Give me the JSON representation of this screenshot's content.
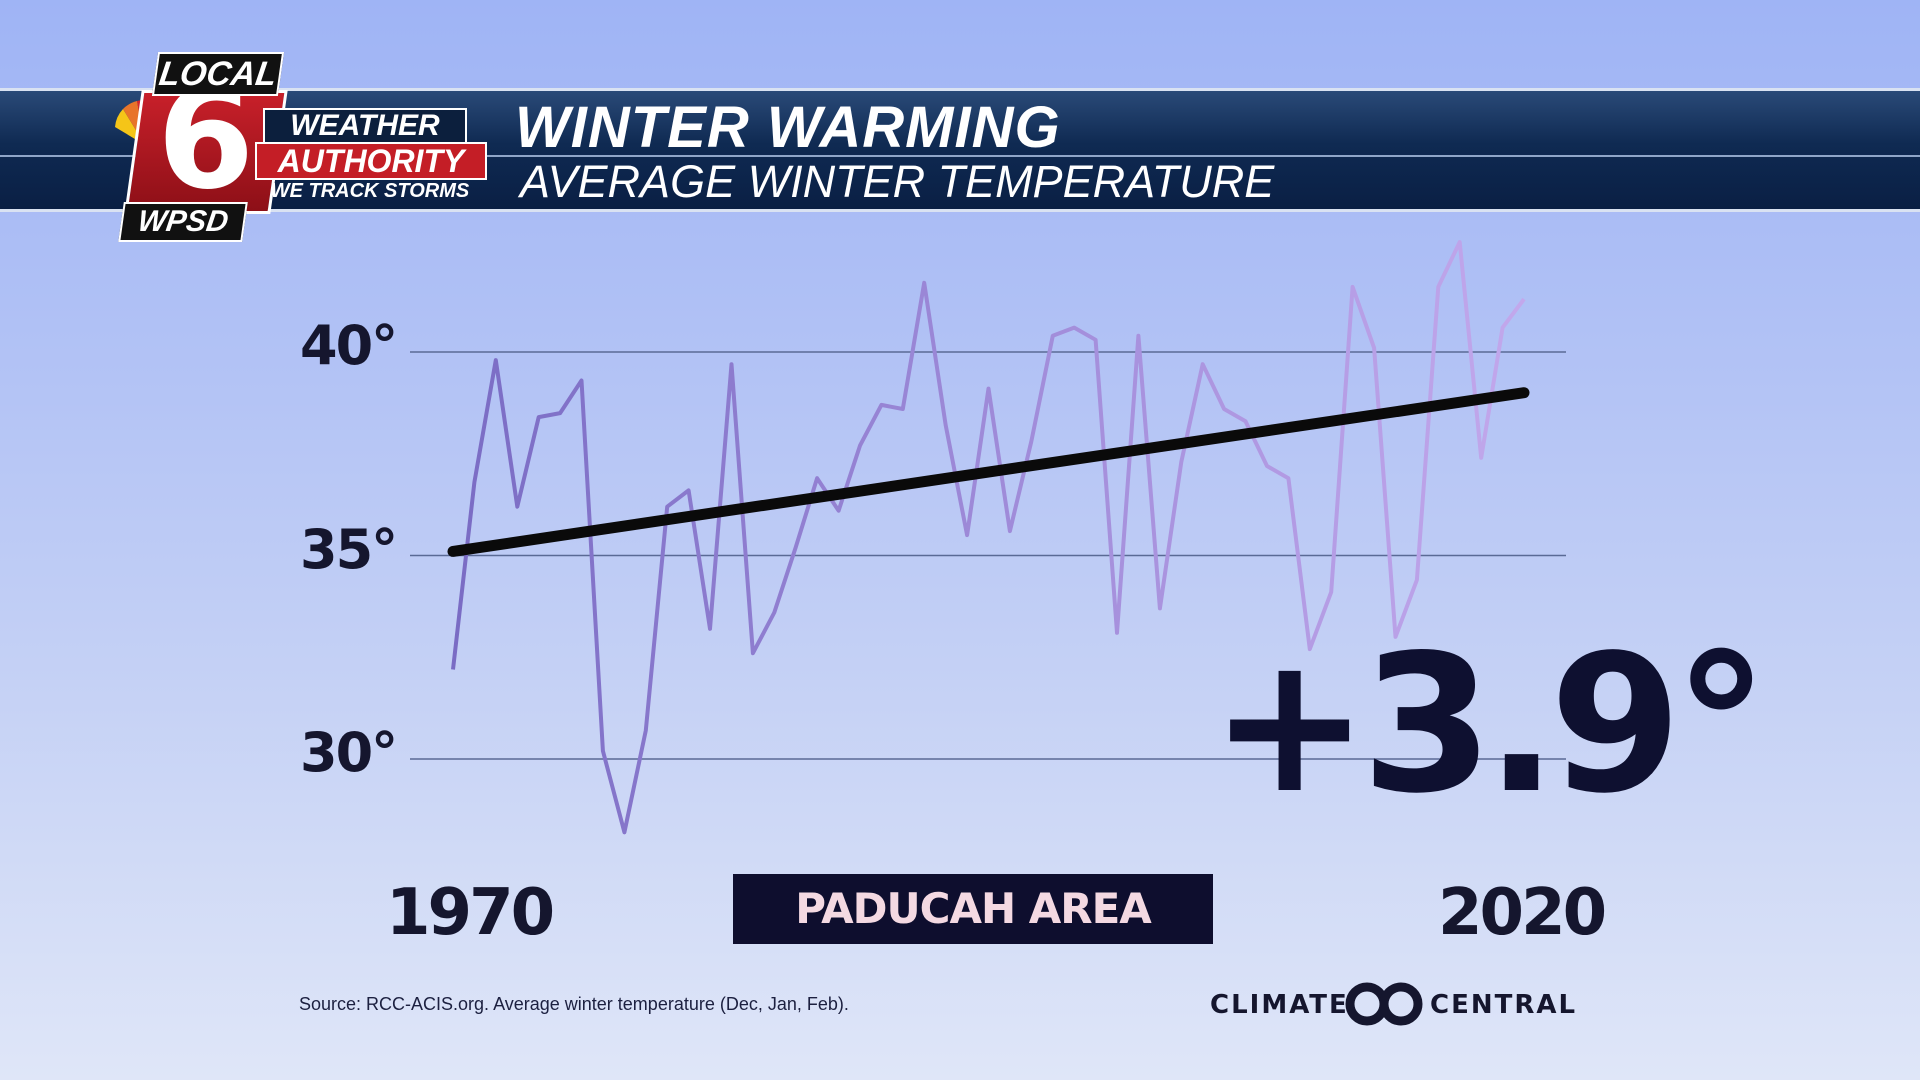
{
  "header": {
    "title": "WINTER WARMING",
    "subtitle": "AVERAGE WINTER TEMPERATURE"
  },
  "logo": {
    "top_word": "LOCAL",
    "channel": "6",
    "station": "WPSD",
    "line1": "WEATHER",
    "line2": "AUTHORITY",
    "tagline": "WE TRACK STORMS"
  },
  "chart_data": {
    "type": "line",
    "x": [
      1970,
      1971,
      1972,
      1973,
      1974,
      1975,
      1976,
      1977,
      1978,
      1979,
      1980,
      1981,
      1982,
      1983,
      1984,
      1985,
      1986,
      1987,
      1988,
      1989,
      1990,
      1991,
      1992,
      1993,
      1994,
      1995,
      1996,
      1997,
      1998,
      1999,
      2000,
      2001,
      2002,
      2003,
      2004,
      2005,
      2006,
      2007,
      2008,
      2009,
      2010,
      2011,
      2012,
      2013,
      2014,
      2015,
      2016,
      2017,
      2018,
      2019,
      2020
    ],
    "series": [
      {
        "values": [
          32.2,
          36.8,
          39.8,
          36.2,
          38.4,
          38.5,
          39.3,
          30.2,
          28.2,
          30.7,
          36.2,
          36.6,
          33.2,
          39.7,
          32.6,
          33.6,
          35.2,
          36.9,
          36.1,
          37.7,
          38.7,
          38.6,
          41.7,
          38.2,
          35.5,
          39.1,
          35.6,
          37.8,
          40.4,
          40.6,
          40.3,
          33.1,
          40.4,
          33.7,
          37.3,
          39.7,
          38.6,
          38.3,
          37.2,
          36.9,
          32.7,
          34.1,
          41.6,
          40.1,
          33.0,
          34.4,
          41.6,
          42.7,
          37.4,
          40.6,
          41.3
        ]
      }
    ],
    "trend": {
      "start": 35.1,
      "end": 39.0
    },
    "ylim": [
      30,
      40
    ],
    "yticks": [
      "40°",
      "35°",
      "30°"
    ],
    "xlabels": [
      "1970",
      "2020"
    ],
    "change_label": "+3.9°",
    "region": "PADUCAH AREA",
    "grid": true,
    "colors": {
      "line_start": "#7a6cc4",
      "line_end": "#c2a8ec",
      "trend": "#0a0a0a",
      "grid": "#5a6a95"
    }
  },
  "footer": {
    "source": "Source: RCC-ACIS.org. Average winter temperature (Dec, Jan, Feb).",
    "brand_left": "CLIMATE",
    "brand_right": "CENTRAL"
  }
}
